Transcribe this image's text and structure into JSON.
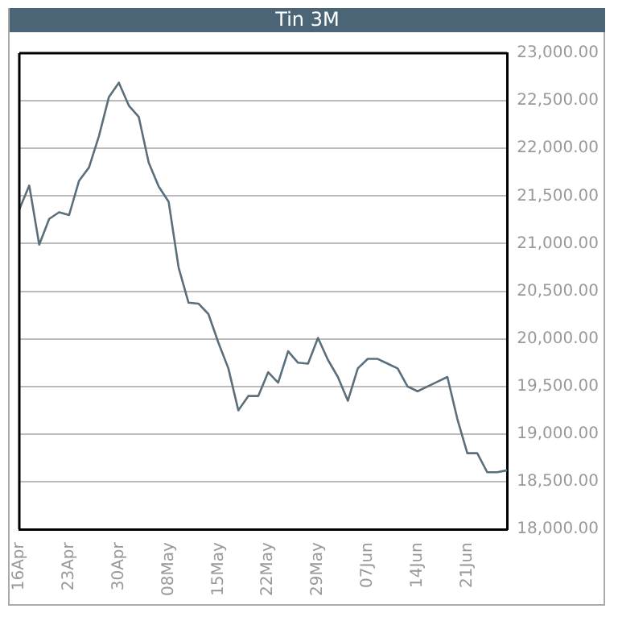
{
  "chart_data": {
    "type": "line",
    "title": "Tin 3M",
    "categories": [
      "16Apr",
      null,
      null,
      null,
      null,
      "23Apr",
      null,
      null,
      null,
      null,
      "30Apr",
      null,
      null,
      null,
      null,
      "08May",
      null,
      null,
      null,
      null,
      "15May",
      null,
      null,
      null,
      null,
      "22May",
      null,
      null,
      null,
      null,
      "29May",
      null,
      null,
      null,
      null,
      "07Jun",
      null,
      null,
      null,
      null,
      "14Jun",
      null,
      null,
      null,
      null,
      "21Jun",
      null,
      null,
      null,
      null
    ],
    "series": [
      {
        "color": "#5a6e7c",
        "values": [
          21360,
          21610,
          20990,
          21260,
          21330,
          21300,
          21660,
          21800,
          22130,
          22540,
          22690,
          22450,
          22330,
          21850,
          21600,
          21440,
          20750,
          20380,
          20370,
          20260,
          19960,
          19690,
          19250,
          19400,
          19400,
          19650,
          19540,
          19870,
          19750,
          19740,
          20010,
          19780,
          19600,
          19350,
          19690,
          19790,
          19790,
          19740,
          19690,
          19500,
          19450,
          19500,
          19550,
          19600,
          19160,
          18800,
          18800,
          18600,
          18600,
          18620
        ]
      }
    ],
    "ylim": [
      18000,
      23000
    ],
    "yticks": [
      {
        "value": 18000,
        "label": "18,000.00"
      },
      {
        "value": 18500,
        "label": "18,500.00"
      },
      {
        "value": 19000,
        "label": "19,000.00"
      },
      {
        "value": 19500,
        "label": "19,500.00"
      },
      {
        "value": 20000,
        "label": "20,000.00"
      },
      {
        "value": 20500,
        "label": "20,500.00"
      },
      {
        "value": 21000,
        "label": "21,000.00"
      },
      {
        "value": 21500,
        "label": "21,500.00"
      },
      {
        "value": 22000,
        "label": "22,000.00"
      },
      {
        "value": 22500,
        "label": "22,500.00"
      },
      {
        "value": 23000,
        "label": "23,000.00"
      }
    ],
    "grid": "y",
    "legend": false,
    "marker": "none",
    "line_style": "solid"
  }
}
